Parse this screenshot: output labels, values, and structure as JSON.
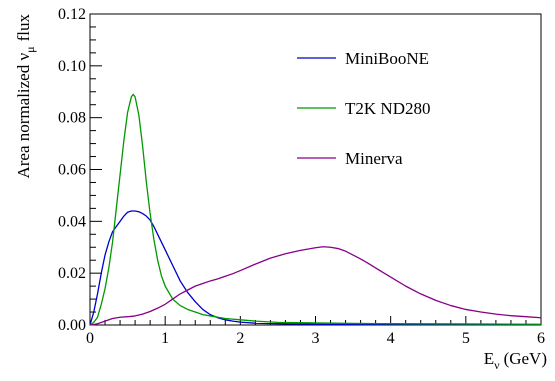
{
  "chart_data": {
    "type": "line",
    "xlabel_main": "E",
    "xlabel_sub": "ν",
    "xlabel_unit": "(GeV)",
    "ylabel_main": "Area normalized  ν",
    "ylabel_sub": "μ",
    "ylabel_unit": "flux",
    "xlim": [
      0,
      6
    ],
    "ylim": [
      0,
      0.12
    ],
    "xticks": [
      {
        "value": 0,
        "label": "0"
      },
      {
        "value": 1,
        "label": "1"
      },
      {
        "value": 2,
        "label": "2"
      },
      {
        "value": 3,
        "label": "3"
      },
      {
        "value": 4,
        "label": "4"
      },
      {
        "value": 5,
        "label": "5"
      },
      {
        "value": 6,
        "label": "6"
      }
    ],
    "yticks": [
      {
        "value": 0,
        "label": "0.00"
      },
      {
        "value": 0.02,
        "label": "0.02"
      },
      {
        "value": 0.04,
        "label": "0.04"
      },
      {
        "value": 0.06,
        "label": "0.06"
      },
      {
        "value": 0.08,
        "label": "0.08"
      },
      {
        "value": 0.1,
        "label": "0.10"
      },
      {
        "value": 0.12,
        "label": "0.12"
      }
    ],
    "grid": false,
    "legend_position": "top-right",
    "series": [
      {
        "name": "MiniBooNE",
        "color": "#0000cc",
        "points": [
          [
            0.0,
            0.0
          ],
          [
            0.05,
            0.005
          ],
          [
            0.1,
            0.012
          ],
          [
            0.15,
            0.02
          ],
          [
            0.2,
            0.027
          ],
          [
            0.25,
            0.032
          ],
          [
            0.3,
            0.036
          ],
          [
            0.35,
            0.038
          ],
          [
            0.4,
            0.04
          ],
          [
            0.45,
            0.042
          ],
          [
            0.5,
            0.0435
          ],
          [
            0.55,
            0.044
          ],
          [
            0.6,
            0.044
          ],
          [
            0.65,
            0.0437
          ],
          [
            0.7,
            0.043
          ],
          [
            0.75,
            0.042
          ],
          [
            0.8,
            0.0405
          ],
          [
            0.85,
            0.038
          ],
          [
            0.9,
            0.035
          ],
          [
            0.95,
            0.032
          ],
          [
            1.0,
            0.029
          ],
          [
            1.1,
            0.023
          ],
          [
            1.2,
            0.017
          ],
          [
            1.3,
            0.0125
          ],
          [
            1.4,
            0.009
          ],
          [
            1.5,
            0.006
          ],
          [
            1.6,
            0.004
          ],
          [
            1.7,
            0.0028
          ],
          [
            1.8,
            0.002
          ],
          [
            1.9,
            0.0015
          ],
          [
            2.0,
            0.0011
          ],
          [
            2.2,
            0.0007
          ],
          [
            2.5,
            0.0005
          ],
          [
            3.0,
            0.0003
          ],
          [
            4.0,
            0.0002
          ],
          [
            5.0,
            0.0001
          ],
          [
            6.0,
            0.0001
          ]
        ]
      },
      {
        "name": "T2K ND280",
        "color": "#009900",
        "points": [
          [
            0.0,
            0.0
          ],
          [
            0.05,
            0.001
          ],
          [
            0.1,
            0.003
          ],
          [
            0.15,
            0.008
          ],
          [
            0.2,
            0.014
          ],
          [
            0.25,
            0.022
          ],
          [
            0.3,
            0.032
          ],
          [
            0.35,
            0.045
          ],
          [
            0.4,
            0.058
          ],
          [
            0.45,
            0.071
          ],
          [
            0.5,
            0.082
          ],
          [
            0.55,
            0.088
          ],
          [
            0.575,
            0.089
          ],
          [
            0.6,
            0.088
          ],
          [
            0.65,
            0.081
          ],
          [
            0.7,
            0.069
          ],
          [
            0.75,
            0.055
          ],
          [
            0.8,
            0.043
          ],
          [
            0.85,
            0.033
          ],
          [
            0.9,
            0.025
          ],
          [
            0.95,
            0.019
          ],
          [
            1.0,
            0.015
          ],
          [
            1.1,
            0.01
          ],
          [
            1.2,
            0.0075
          ],
          [
            1.3,
            0.006
          ],
          [
            1.4,
            0.005
          ],
          [
            1.5,
            0.004
          ],
          [
            1.6,
            0.0035
          ],
          [
            1.8,
            0.0025
          ],
          [
            2.0,
            0.002
          ],
          [
            2.2,
            0.0015
          ],
          [
            2.5,
            0.001
          ],
          [
            3.0,
            0.0008
          ],
          [
            3.5,
            0.0006
          ],
          [
            4.0,
            0.0005
          ],
          [
            5.0,
            0.0004
          ],
          [
            6.0,
            0.0003
          ]
        ]
      },
      {
        "name": "Minerva",
        "color": "#880088",
        "points": [
          [
            0.0,
            0.0
          ],
          [
            0.05,
            0.0002
          ],
          [
            0.1,
            0.0005
          ],
          [
            0.2,
            0.0015
          ],
          [
            0.3,
            0.0025
          ],
          [
            0.4,
            0.003
          ],
          [
            0.5,
            0.0032
          ],
          [
            0.6,
            0.0035
          ],
          [
            0.7,
            0.0042
          ],
          [
            0.8,
            0.0052
          ],
          [
            0.9,
            0.0065
          ],
          [
            1.0,
            0.008
          ],
          [
            1.1,
            0.01
          ],
          [
            1.2,
            0.012
          ],
          [
            1.3,
            0.0135
          ],
          [
            1.4,
            0.015
          ],
          [
            1.5,
            0.016
          ],
          [
            1.6,
            0.017
          ],
          [
            1.7,
            0.0178
          ],
          [
            1.8,
            0.0188
          ],
          [
            1.9,
            0.0198
          ],
          [
            2.0,
            0.021
          ],
          [
            2.2,
            0.0235
          ],
          [
            2.4,
            0.0258
          ],
          [
            2.6,
            0.0275
          ],
          [
            2.8,
            0.0288
          ],
          [
            3.0,
            0.0298
          ],
          [
            3.1,
            0.0302
          ],
          [
            3.2,
            0.03
          ],
          [
            3.3,
            0.0295
          ],
          [
            3.4,
            0.0285
          ],
          [
            3.5,
            0.027
          ],
          [
            3.6,
            0.0255
          ],
          [
            3.7,
            0.0238
          ],
          [
            3.8,
            0.022
          ],
          [
            4.0,
            0.0185
          ],
          [
            4.2,
            0.015
          ],
          [
            4.4,
            0.012
          ],
          [
            4.6,
            0.0095
          ],
          [
            4.8,
            0.0075
          ],
          [
            5.0,
            0.006
          ],
          [
            5.2,
            0.005
          ],
          [
            5.4,
            0.0042
          ],
          [
            5.6,
            0.0036
          ],
          [
            5.8,
            0.0032
          ],
          [
            6.0,
            0.0028
          ]
        ]
      }
    ]
  }
}
